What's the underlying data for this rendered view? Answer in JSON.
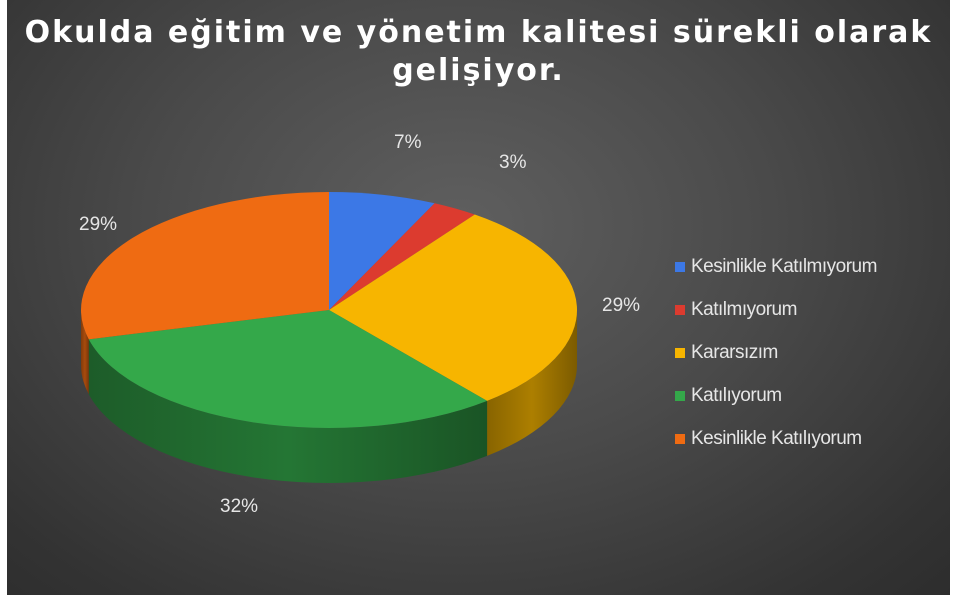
{
  "chart_data": {
    "type": "pie",
    "title": "Okulda eğitim ve yönetim kalitesi sürekli olarak gelişiyor.",
    "categories": [
      "Kesinlikle Katılmıyorum",
      "Katılmıyorum",
      "Kararsızım",
      "Katılıyorum",
      "Kesinlikle Katılıyorum"
    ],
    "values": [
      7,
      3,
      29,
      32,
      29
    ],
    "labels": [
      "7%",
      "3%",
      "29%",
      "32%",
      "29%"
    ],
    "colors": [
      "#3c78e6",
      "#dc3b2f",
      "#f7b500",
      "#34a84a",
      "#ef6b12"
    ],
    "legend_position": "right",
    "style": "3d"
  }
}
